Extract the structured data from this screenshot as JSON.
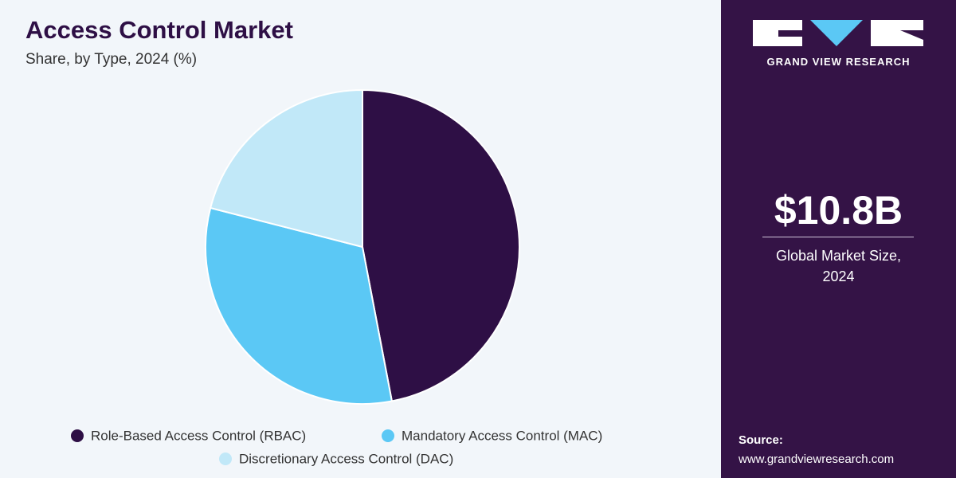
{
  "chart_data": {
    "type": "pie",
    "title": "Access Control Market",
    "subtitle": "Share, by Type, 2024 (%)",
    "categories": [
      "Role-Based Access Control (RBAC)",
      "Mandatory Access Control (MAC)",
      "Discretionary Access Control (DAC)"
    ],
    "values": [
      47,
      32,
      21
    ],
    "colors": [
      "#2e0f45",
      "#5bc8f5",
      "#c1e8f8"
    ]
  },
  "panel": {
    "brand": "GRAND VIEW RESEARCH",
    "market_size": "$10.8B",
    "market_label": "Global Market Size, 2024",
    "source_label": "Source:",
    "source_url": "www.grandviewresearch.com"
  }
}
